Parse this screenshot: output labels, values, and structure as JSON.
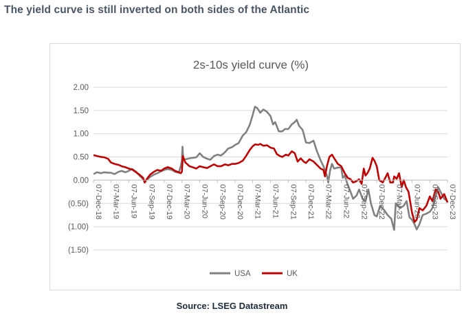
{
  "headline": "The yield curve is still inverted on both sides of the Atlantic",
  "source": "Source: LSEG Datastream",
  "colors": {
    "usa": "#808080",
    "uk": "#c00000",
    "grid": "#d9d9d9",
    "text": "#595959"
  },
  "chart_data": {
    "type": "line",
    "title": "2s-10s yield curve (%)",
    "xlabel": "",
    "ylabel": "",
    "ylim": [
      -1.5,
      2.0
    ],
    "yticks": [
      2.0,
      1.5,
      1.0,
      0.5,
      0.0,
      -0.5,
      -1.0,
      -1.5
    ],
    "ytick_labels": [
      "2.00",
      "1.50",
      "1.00",
      "0.50",
      "0.00",
      "(0.50)",
      "(1.00)",
      "(1.50)"
    ],
    "xlim": [
      "2018-12-07",
      "2023-12-07"
    ],
    "xticks": [
      "2018-12-07",
      "2019-03-07",
      "2019-06-07",
      "2019-09-07",
      "2019-12-07",
      "2020-03-07",
      "2020-06-07",
      "2020-09-07",
      "2020-12-07",
      "2021-03-07",
      "2021-06-07",
      "2021-09-07",
      "2021-12-07",
      "2022-03-07",
      "2022-06-07",
      "2022-09-07",
      "2022-12-07",
      "2023-03-07",
      "2023-06-07",
      "2023-09-07",
      "2023-12-07"
    ],
    "xtick_labels": [
      "07-Dec-18",
      "07-Mar-19",
      "07-Jun-19",
      "07-Sep-19",
      "07-Dec-19",
      "07-Mar-20",
      "07-Jun-20",
      "07-Sep-20",
      "07-Dec-20",
      "07-Mar-21",
      "07-Jun-21",
      "07-Sep-21",
      "07-Dec-21",
      "07-Mar-22",
      "07-Jun-22",
      "07-Sep-22",
      "07-Dec-22",
      "07-Mar-23",
      "07-Jun-23",
      "07-Sep-23",
      "07-Dec-23"
    ],
    "legend_position": "bottom-center",
    "grid": "horizontal",
    "series": [
      {
        "name": "USA",
        "color": "#808080",
        "points": [
          [
            "2018-12-07",
            0.13
          ],
          [
            "2018-12-25",
            0.17
          ],
          [
            "2019-01-15",
            0.15
          ],
          [
            "2019-02-01",
            0.17
          ],
          [
            "2019-02-20",
            0.16
          ],
          [
            "2019-03-07",
            0.16
          ],
          [
            "2019-03-25",
            0.13
          ],
          [
            "2019-04-15",
            0.18
          ],
          [
            "2019-05-01",
            0.2
          ],
          [
            "2019-05-20",
            0.17
          ],
          [
            "2019-06-07",
            0.2
          ],
          [
            "2019-06-25",
            0.24
          ],
          [
            "2019-07-15",
            0.18
          ],
          [
            "2019-08-01",
            0.1
          ],
          [
            "2019-08-20",
            0.02
          ],
          [
            "2019-08-28",
            -0.03
          ],
          [
            "2019-09-07",
            0.0
          ],
          [
            "2019-09-25",
            0.07
          ],
          [
            "2019-10-15",
            0.12
          ],
          [
            "2019-11-01",
            0.15
          ],
          [
            "2019-11-20",
            0.19
          ],
          [
            "2019-12-07",
            0.22
          ],
          [
            "2019-12-25",
            0.24
          ],
          [
            "2020-01-15",
            0.22
          ],
          [
            "2020-02-01",
            0.18
          ],
          [
            "2020-02-20",
            0.16
          ],
          [
            "2020-03-01",
            0.3
          ],
          [
            "2020-03-07",
            0.42
          ],
          [
            "2020-03-10",
            0.72
          ],
          [
            "2020-03-14",
            0.45
          ],
          [
            "2020-03-25",
            0.45
          ],
          [
            "2020-04-15",
            0.47
          ],
          [
            "2020-05-01",
            0.48
          ],
          [
            "2020-05-20",
            0.49
          ],
          [
            "2020-06-07",
            0.58
          ],
          [
            "2020-06-25",
            0.5
          ],
          [
            "2020-07-15",
            0.46
          ],
          [
            "2020-08-01",
            0.44
          ],
          [
            "2020-08-20",
            0.52
          ],
          [
            "2020-09-07",
            0.55
          ],
          [
            "2020-09-25",
            0.53
          ],
          [
            "2020-10-15",
            0.6
          ],
          [
            "2020-11-01",
            0.68
          ],
          [
            "2020-11-20",
            0.71
          ],
          [
            "2020-12-07",
            0.76
          ],
          [
            "2020-12-25",
            0.8
          ],
          [
            "2021-01-15",
            0.96
          ],
          [
            "2021-02-01",
            1.03
          ],
          [
            "2021-02-20",
            1.19
          ],
          [
            "2021-03-07",
            1.4
          ],
          [
            "2021-03-19",
            1.58
          ],
          [
            "2021-03-31",
            1.55
          ],
          [
            "2021-04-15",
            1.45
          ],
          [
            "2021-05-01",
            1.52
          ],
          [
            "2021-05-20",
            1.47
          ],
          [
            "2021-06-07",
            1.38
          ],
          [
            "2021-06-20",
            1.2
          ],
          [
            "2021-07-01",
            1.25
          ],
          [
            "2021-07-20",
            1.05
          ],
          [
            "2021-08-07",
            1.05
          ],
          [
            "2021-08-20",
            1.1
          ],
          [
            "2021-09-07",
            1.1
          ],
          [
            "2021-09-25",
            1.2
          ],
          [
            "2021-10-10",
            1.25
          ],
          [
            "2021-10-20",
            1.3
          ],
          [
            "2021-11-01",
            1.17
          ],
          [
            "2021-11-20",
            1.08
          ],
          [
            "2021-12-07",
            0.81
          ],
          [
            "2021-12-25",
            0.8
          ],
          [
            "2022-01-15",
            0.85
          ],
          [
            "2022-02-01",
            0.63
          ],
          [
            "2022-02-20",
            0.43
          ],
          [
            "2022-03-07",
            0.3
          ],
          [
            "2022-03-25",
            0.1
          ],
          [
            "2022-04-01",
            -0.05
          ],
          [
            "2022-04-10",
            0.2
          ],
          [
            "2022-04-20",
            0.35
          ],
          [
            "2022-05-01",
            0.25
          ],
          [
            "2022-05-20",
            0.27
          ],
          [
            "2022-06-07",
            0.27
          ],
          [
            "2022-06-15",
            0.05
          ],
          [
            "2022-06-25",
            0.1
          ],
          [
            "2022-07-10",
            -0.1
          ],
          [
            "2022-07-25",
            -0.25
          ],
          [
            "2022-08-07",
            -0.4
          ],
          [
            "2022-08-25",
            -0.33
          ],
          [
            "2022-09-07",
            -0.2
          ],
          [
            "2022-09-25",
            -0.4
          ],
          [
            "2022-10-10",
            -0.45
          ],
          [
            "2022-10-25",
            -0.2
          ],
          [
            "2022-11-07",
            -0.5
          ],
          [
            "2022-11-25",
            -0.75
          ],
          [
            "2022-12-07",
            -0.78
          ],
          [
            "2022-12-25",
            -0.55
          ],
          [
            "2023-01-15",
            -0.65
          ],
          [
            "2023-02-01",
            -0.75
          ],
          [
            "2023-02-20",
            -0.83
          ],
          [
            "2023-03-07",
            -1.07
          ],
          [
            "2023-03-15",
            -0.5
          ],
          [
            "2023-03-25",
            -0.55
          ],
          [
            "2023-04-07",
            -0.6
          ],
          [
            "2023-04-25",
            -0.55
          ],
          [
            "2023-05-10",
            -0.45
          ],
          [
            "2023-05-25",
            -0.8
          ],
          [
            "2023-06-07",
            -0.85
          ],
          [
            "2023-06-20",
            -0.95
          ],
          [
            "2023-07-01",
            -1.06
          ],
          [
            "2023-07-15",
            -0.95
          ],
          [
            "2023-08-01",
            -0.75
          ],
          [
            "2023-08-20",
            -0.72
          ],
          [
            "2023-09-07",
            -0.68
          ],
          [
            "2023-09-20",
            -0.6
          ],
          [
            "2023-10-07",
            -0.35
          ],
          [
            "2023-10-20",
            -0.15
          ],
          [
            "2023-11-01",
            -0.25
          ],
          [
            "2023-11-20",
            -0.4
          ],
          [
            "2023-12-07",
            -0.45
          ]
        ]
      },
      {
        "name": "UK",
        "color": "#c00000",
        "points": [
          [
            "2018-12-07",
            0.54
          ],
          [
            "2018-12-25",
            0.52
          ],
          [
            "2019-01-15",
            0.5
          ],
          [
            "2019-02-01",
            0.49
          ],
          [
            "2019-02-20",
            0.46
          ],
          [
            "2019-03-07",
            0.38
          ],
          [
            "2019-03-25",
            0.35
          ],
          [
            "2019-04-15",
            0.33
          ],
          [
            "2019-05-01",
            0.3
          ],
          [
            "2019-05-20",
            0.28
          ],
          [
            "2019-06-07",
            0.25
          ],
          [
            "2019-06-25",
            0.23
          ],
          [
            "2019-07-15",
            0.17
          ],
          [
            "2019-08-01",
            0.12
          ],
          [
            "2019-08-20",
            0.05
          ],
          [
            "2019-08-28",
            -0.05
          ],
          [
            "2019-09-07",
            0.02
          ],
          [
            "2019-09-25",
            0.12
          ],
          [
            "2019-10-15",
            0.18
          ],
          [
            "2019-11-01",
            0.22
          ],
          [
            "2019-11-20",
            0.2
          ],
          [
            "2019-12-07",
            0.25
          ],
          [
            "2019-12-25",
            0.28
          ],
          [
            "2020-01-15",
            0.25
          ],
          [
            "2020-02-01",
            0.2
          ],
          [
            "2020-02-20",
            0.17
          ],
          [
            "2020-03-01",
            0.15
          ],
          [
            "2020-03-07",
            0.18
          ],
          [
            "2020-03-12",
            0.52
          ],
          [
            "2020-03-18",
            0.45
          ],
          [
            "2020-03-25",
            0.38
          ],
          [
            "2020-04-15",
            0.3
          ],
          [
            "2020-05-01",
            0.28
          ],
          [
            "2020-05-20",
            0.25
          ],
          [
            "2020-06-07",
            0.3
          ],
          [
            "2020-06-25",
            0.28
          ],
          [
            "2020-07-15",
            0.26
          ],
          [
            "2020-08-01",
            0.3
          ],
          [
            "2020-08-20",
            0.34
          ],
          [
            "2020-09-07",
            0.3
          ],
          [
            "2020-09-25",
            0.3
          ],
          [
            "2020-10-15",
            0.34
          ],
          [
            "2020-11-01",
            0.32
          ],
          [
            "2020-11-20",
            0.35
          ],
          [
            "2020-12-07",
            0.35
          ],
          [
            "2020-12-25",
            0.37
          ],
          [
            "2021-01-15",
            0.42
          ],
          [
            "2021-02-01",
            0.52
          ],
          [
            "2021-02-20",
            0.65
          ],
          [
            "2021-03-07",
            0.73
          ],
          [
            "2021-03-20",
            0.77
          ],
          [
            "2021-04-05",
            0.76
          ],
          [
            "2021-04-15",
            0.78
          ],
          [
            "2021-05-01",
            0.74
          ],
          [
            "2021-05-20",
            0.75
          ],
          [
            "2021-06-07",
            0.7
          ],
          [
            "2021-06-25",
            0.68
          ],
          [
            "2021-07-10",
            0.56
          ],
          [
            "2021-07-25",
            0.52
          ],
          [
            "2021-08-07",
            0.5
          ],
          [
            "2021-08-25",
            0.55
          ],
          [
            "2021-09-07",
            0.53
          ],
          [
            "2021-09-25",
            0.62
          ],
          [
            "2021-10-10",
            0.58
          ],
          [
            "2021-10-25",
            0.4
          ],
          [
            "2021-11-10",
            0.47
          ],
          [
            "2021-11-25",
            0.4
          ],
          [
            "2021-12-07",
            0.37
          ],
          [
            "2021-12-25",
            0.45
          ],
          [
            "2022-01-15",
            0.4
          ],
          [
            "2022-02-01",
            0.33
          ],
          [
            "2022-02-20",
            0.25
          ],
          [
            "2022-03-07",
            0.22
          ],
          [
            "2022-03-15",
            0.08
          ],
          [
            "2022-03-25",
            0.3
          ],
          [
            "2022-04-07",
            0.5
          ],
          [
            "2022-04-20",
            0.55
          ],
          [
            "2022-05-05",
            0.45
          ],
          [
            "2022-05-20",
            0.35
          ],
          [
            "2022-06-07",
            0.3
          ],
          [
            "2022-06-25",
            0.15
          ],
          [
            "2022-07-10",
            0.05
          ],
          [
            "2022-07-25",
            0.02
          ],
          [
            "2022-08-07",
            -0.05
          ],
          [
            "2022-08-20",
            -0.03
          ],
          [
            "2022-09-07",
            0.02
          ],
          [
            "2022-09-20",
            -0.08
          ],
          [
            "2022-10-01",
            0.25
          ],
          [
            "2022-10-10",
            0.1
          ],
          [
            "2022-10-20",
            0.15
          ],
          [
            "2022-11-01",
            0.25
          ],
          [
            "2022-11-15",
            0.48
          ],
          [
            "2022-11-25",
            0.42
          ],
          [
            "2022-12-07",
            0.3
          ],
          [
            "2022-12-20",
            0.0
          ],
          [
            "2023-01-07",
            -0.05
          ],
          [
            "2023-01-20",
            0.05
          ],
          [
            "2023-02-01",
            0.15
          ],
          [
            "2023-02-15",
            -0.05
          ],
          [
            "2023-03-01",
            -0.05
          ],
          [
            "2023-03-07",
            0.08
          ],
          [
            "2023-03-20",
            0.03
          ],
          [
            "2023-04-01",
            0.15
          ],
          [
            "2023-04-15",
            -0.15
          ],
          [
            "2023-04-25",
            0.0
          ],
          [
            "2023-05-07",
            -0.15
          ],
          [
            "2023-05-20",
            -0.25
          ],
          [
            "2023-06-07",
            -0.7
          ],
          [
            "2023-06-20",
            -0.9
          ],
          [
            "2023-07-01",
            -0.85
          ],
          [
            "2023-07-15",
            -0.6
          ],
          [
            "2023-08-01",
            -0.65
          ],
          [
            "2023-08-20",
            -0.55
          ],
          [
            "2023-09-07",
            -0.35
          ],
          [
            "2023-09-20",
            -0.45
          ],
          [
            "2023-10-07",
            -0.2
          ],
          [
            "2023-10-20",
            -0.25
          ],
          [
            "2023-11-01",
            -0.4
          ],
          [
            "2023-11-20",
            -0.3
          ],
          [
            "2023-12-07",
            -0.48
          ]
        ]
      }
    ]
  }
}
